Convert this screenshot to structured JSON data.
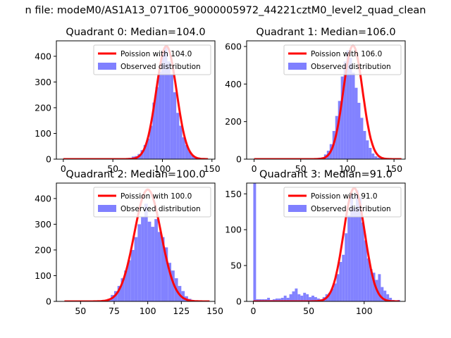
{
  "suptitle": "n file: modeM0/AS1A13_071T06_9000005972_44221cztM0_level2_quad_clean",
  "colors": {
    "fit": "#ff0000",
    "hist": "#8080ff",
    "axes": "#000000"
  },
  "chart_data": [
    {
      "type": "bar",
      "title": "Quadrant 0: Median=104.0",
      "xlim": [
        -7,
        153
      ],
      "ylim": [
        0,
        460
      ],
      "xticks": [
        0,
        50,
        100,
        150
      ],
      "yticks": [
        0,
        100,
        200,
        300,
        400
      ],
      "legend": {
        "placement": "top-right",
        "fit_label": "Poission with 104.0",
        "hist_label": "Observed distribution"
      },
      "fit": {
        "mu": 104.0,
        "peak": 440,
        "x_range": [
          0,
          146
        ]
      },
      "hist": {
        "bin_start": 60,
        "bin_width": 3,
        "values": [
          2,
          3,
          5,
          10,
          12,
          20,
          35,
          55,
          80,
          130,
          220,
          280,
          340,
          420,
          440,
          380,
          330,
          260,
          180,
          130,
          85,
          55,
          30,
          15,
          8,
          4,
          2,
          1,
          1,
          0
        ]
      }
    },
    {
      "type": "bar",
      "title": "Quadrant 1: Median=106.0",
      "xlim": [
        -8,
        162
      ],
      "ylim": [
        0,
        630
      ],
      "xticks": [
        0,
        50,
        100,
        150
      ],
      "yticks": [
        0,
        200,
        400,
        600
      ],
      "legend": {
        "placement": "top-right",
        "fit_label": "Poission with 106.0",
        "hist_label": "Observed distribution"
      },
      "fit": {
        "mu": 106.0,
        "peak": 605,
        "x_range": [
          0,
          158
        ]
      },
      "hist": {
        "bin_start": 60,
        "bin_width": 3,
        "values": [
          1,
          2,
          4,
          8,
          10,
          25,
          45,
          80,
          150,
          230,
          310,
          440,
          520,
          580,
          540,
          460,
          380,
          300,
          220,
          150,
          100,
          60,
          30,
          15,
          8,
          4,
          2,
          1,
          1,
          0
        ]
      }
    },
    {
      "type": "bar",
      "title": "Quadrant 2: Median=100.0",
      "xlim": [
        32,
        150
      ],
      "ylim": [
        0,
        460
      ],
      "xticks": [
        50,
        75,
        100,
        125,
        150
      ],
      "yticks": [
        0,
        100,
        200,
        300,
        400
      ],
      "legend": {
        "placement": "top-right",
        "fit_label": "Poission with 100.0",
        "hist_label": "Observed distribution"
      },
      "fit": {
        "mu": 100.0,
        "peak": 435,
        "x_range": [
          38,
          146
        ]
      },
      "hist": {
        "bin_start": 65,
        "bin_width": 2.5,
        "values": [
          3,
          5,
          10,
          25,
          40,
          60,
          90,
          120,
          160,
          200,
          250,
          300,
          330,
          380,
          310,
          290,
          320,
          270,
          250,
          210,
          150,
          120,
          90,
          60,
          40,
          20,
          10,
          5
        ]
      }
    },
    {
      "type": "bar",
      "title": "Quadrant 3: Median=91.0",
      "xlim": [
        -6,
        137
      ],
      "ylim": [
        0,
        165
      ],
      "xticks": [
        0,
        50,
        100
      ],
      "yticks": [
        0,
        50,
        100,
        150
      ],
      "legend": {
        "placement": "top-right",
        "fit_label": "Poission with 91.0",
        "hist_label": "Observed distribution"
      },
      "fit": {
        "mu": 91.0,
        "peak": 158,
        "x_range": [
          0,
          132
        ]
      },
      "hist": {
        "bin_start": 0,
        "bin_width": 2.5,
        "values": [
          165,
          3,
          3,
          3,
          3,
          5,
          2,
          3,
          4,
          4,
          5,
          8,
          5,
          10,
          14,
          18,
          10,
          8,
          12,
          10,
          6,
          8,
          6,
          4,
          3,
          6,
          10,
          12,
          18,
          25,
          38,
          55,
          65,
          95,
          120,
          150,
          130,
          155,
          145,
          110,
          85,
          60,
          45,
          40,
          30,
          38,
          20,
          15,
          10,
          5,
          2,
          1,
          2
        ]
      }
    }
  ]
}
